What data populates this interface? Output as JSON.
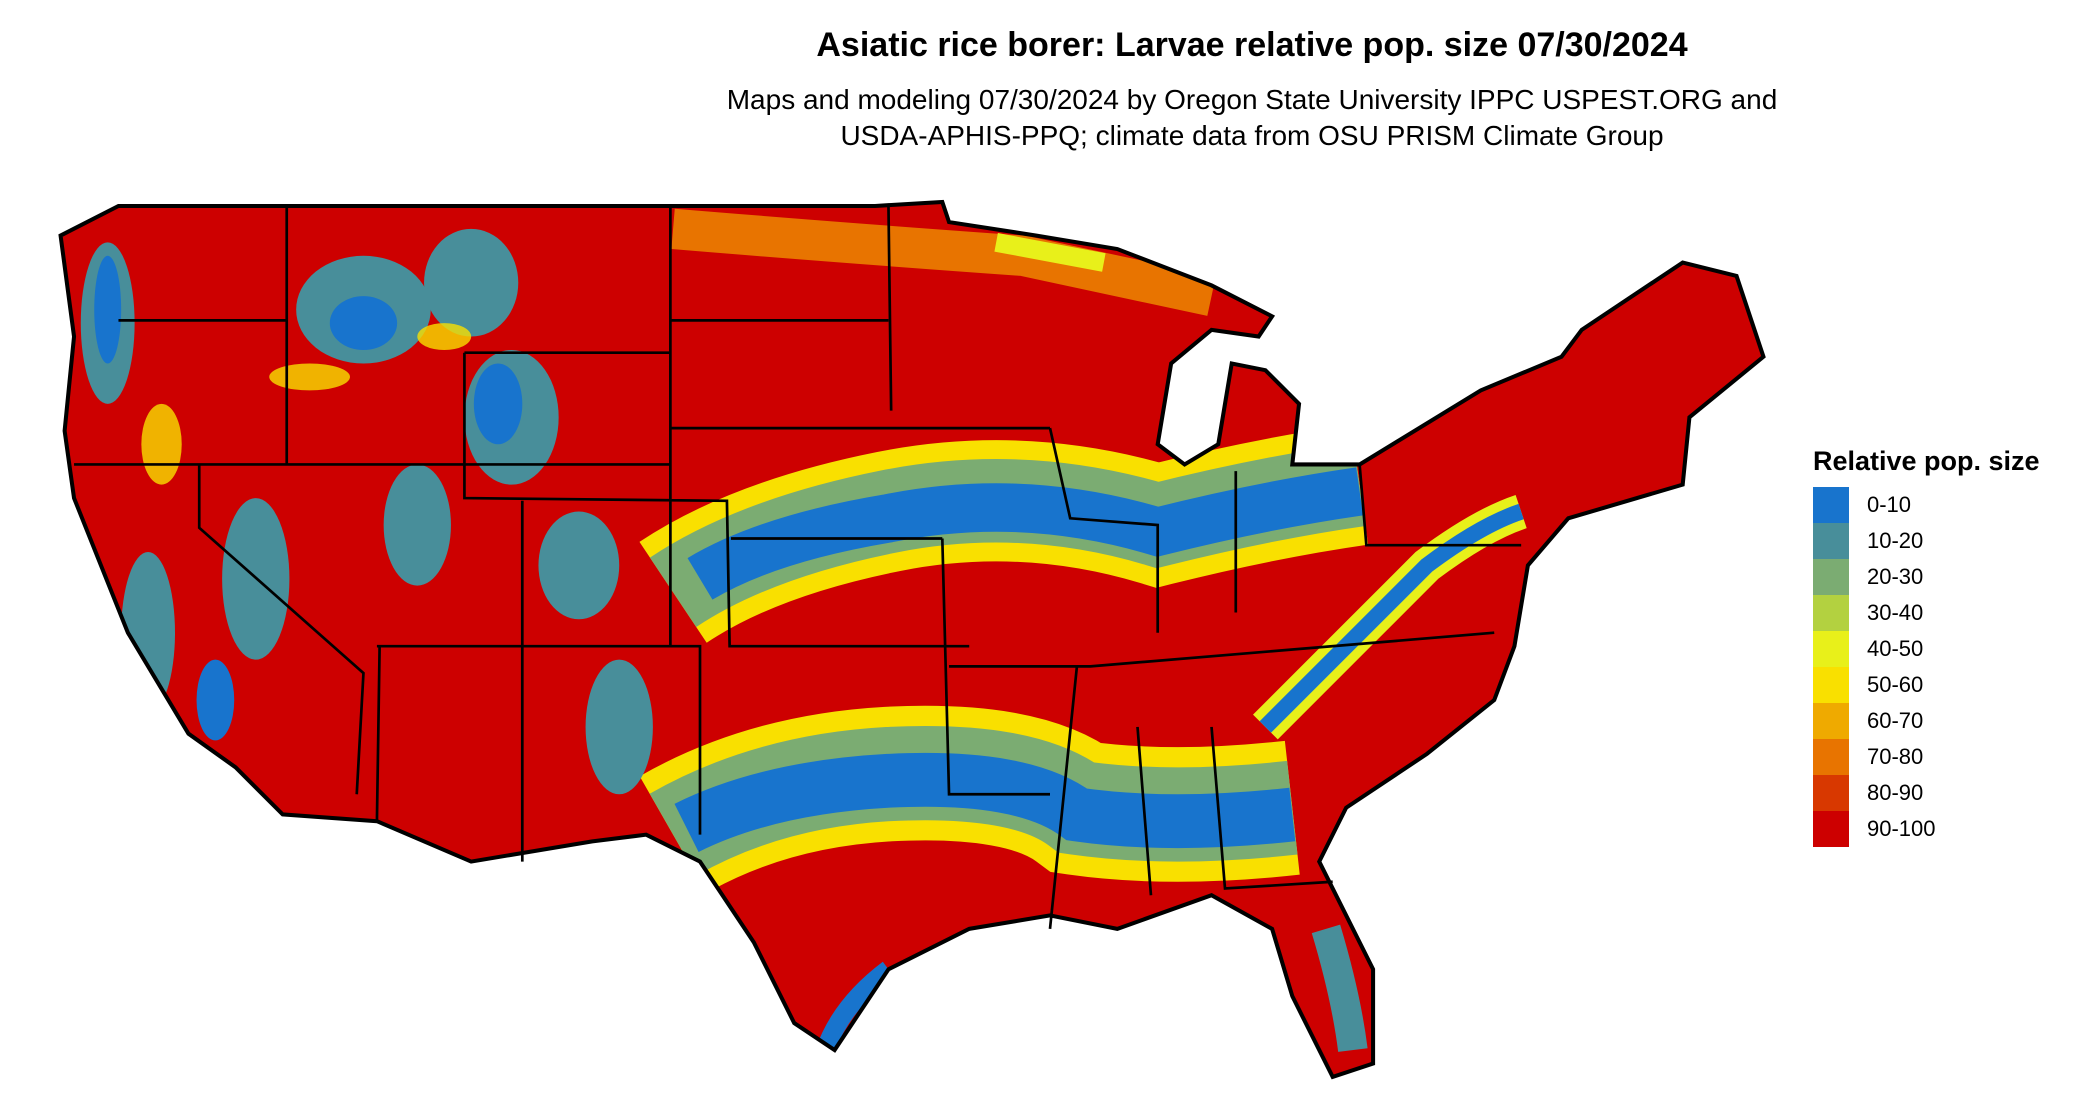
{
  "title": "Asiatic rice borer: Larvae relative pop. size 07/30/2024",
  "subtitle_line1": "Maps and modeling 07/30/2024 by Oregon State University IPPC USPEST.ORG and",
  "subtitle_line2": "USDA-APHIS-PPQ; climate data from OSU PRISM Climate Group",
  "legend": {
    "title": "Relative pop. size",
    "items": [
      {
        "label": "0-10",
        "color": "#1874CD"
      },
      {
        "label": "10-20",
        "color": "#488E9A"
      },
      {
        "label": "20-30",
        "color": "#7BAC72"
      },
      {
        "label": "30-40",
        "color": "#B3D140"
      },
      {
        "label": "40-50",
        "color": "#E8F01A"
      },
      {
        "label": "50-60",
        "color": "#F9E000"
      },
      {
        "label": "60-70",
        "color": "#EFAA00"
      },
      {
        "label": "70-80",
        "color": "#E87400"
      },
      {
        "label": "80-90",
        "color": "#D83800"
      },
      {
        "label": "90-100",
        "color": "#CD0000"
      }
    ]
  }
}
